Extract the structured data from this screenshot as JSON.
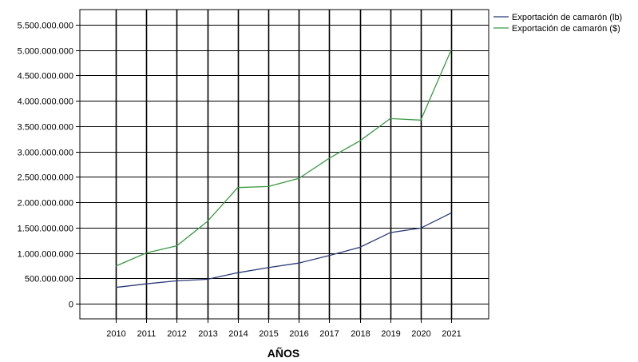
{
  "chart_data": {
    "type": "line",
    "title": "",
    "xlabel": "AÑOS",
    "ylabel": "",
    "x": [
      "2010",
      "2011",
      "2012",
      "2013",
      "2014",
      "2015",
      "2016",
      "2017",
      "2018",
      "2019",
      "2020",
      "2021"
    ],
    "series": [
      {
        "name": "Exportación de camarón (lb)",
        "color": "#2b3a78",
        "values": [
          320000000,
          390000000,
          450000000,
          480000000,
          610000000,
          710000000,
          800000000,
          950000000,
          1110000000,
          1400000000,
          1490000000,
          1790000000
        ]
      },
      {
        "name": "Exportación de camarón ($)",
        "color": "#3a9a44",
        "values": [
          740000000,
          1000000000,
          1140000000,
          1620000000,
          2290000000,
          2310000000,
          2470000000,
          2870000000,
          3210000000,
          3650000000,
          3620000000,
          5010000000
        ]
      }
    ],
    "ylim": [
      -300000000,
      5800000000
    ],
    "yticks": [
      0,
      500000000,
      1000000000,
      1500000000,
      2000000000,
      2500000000,
      3000000000,
      3500000000,
      4000000000,
      4500000000,
      5000000000,
      5500000000
    ],
    "ytick_labels": [
      "0",
      "500.000.000",
      "1.000.000.000",
      "1.500.000.000",
      "2.000.000.000",
      "2.500.000.000",
      "3.000.000.000",
      "3.500.000.000",
      "4.000.000.000",
      "4.500.000.000",
      "5.000.000.000",
      "5.500.000.000"
    ],
    "grid": true,
    "legend": "top-right"
  }
}
